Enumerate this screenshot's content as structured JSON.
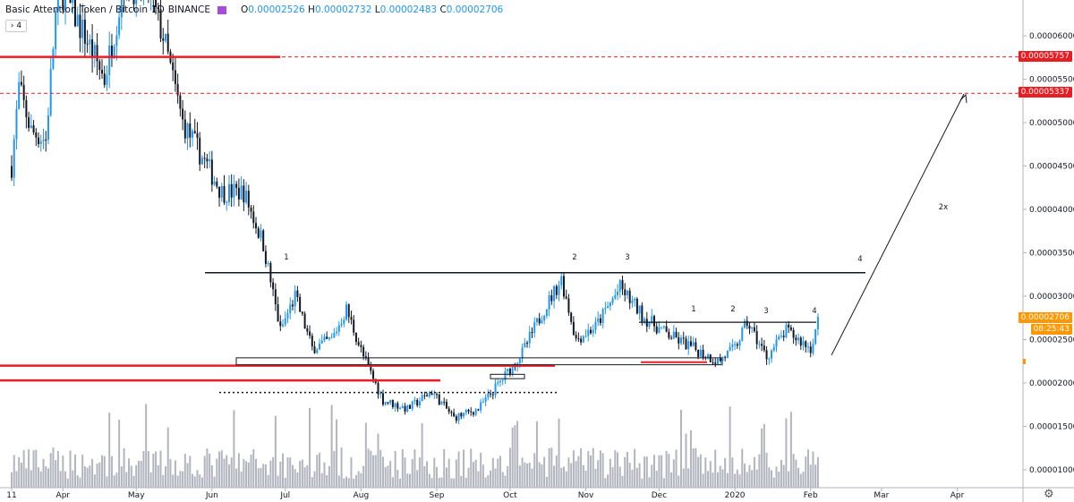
{
  "legend": {
    "symbol": "Basic Attention Token / Bitcoin",
    "interval": "1D",
    "exchange": "BINANCE",
    "o_label": "O",
    "o": "0.00002526",
    "h_label": "H",
    "h": "0.00002732",
    "l_label": "L",
    "l": "0.00002483",
    "c_label": "C",
    "c": "0.00002706",
    "collapse": "4"
  },
  "price_tags": {
    "red1": "0.00005757",
    "red2": "0.00005337",
    "last": "0.00002706",
    "countdown": "08:25:43"
  },
  "colors": {
    "up": "#2196f3",
    "down": "#131722",
    "red": "#e91e25",
    "orange": "#ff9800"
  },
  "chart_data": {
    "type": "candlestick",
    "y_axis": {
      "ticks": [
        "0.00006000",
        "0.00005500",
        "0.00005000",
        "0.00004500",
        "0.00004000",
        "0.00003500",
        "0.00003000",
        "0.00002500",
        "0.00002000",
        "0.00001500",
        "0.00001000"
      ],
      "range": [
        5.9e-06,
        6.4e-05
      ]
    },
    "x_axis": {
      "ticks": [
        "11",
        "Apr",
        "May",
        "Jun",
        "Jul",
        "Aug",
        "Sep",
        "Oct",
        "Nov",
        "Dec",
        "2020",
        "Feb",
        "Mar",
        "Apr"
      ]
    },
    "price_path": [
      [
        "2019-03-11",
        4.5e-05
      ],
      [
        "2019-03-14",
        5.4e-05
      ],
      [
        "2019-03-19",
        4.9e-05
      ],
      [
        "2019-03-25",
        4.8e-05
      ],
      [
        "2019-03-30",
        6.6e-05
      ],
      [
        "2019-04-10",
        6e-05
      ],
      [
        "2019-04-18",
        5.5e-05
      ],
      [
        "2019-04-26",
        6.6e-05
      ],
      [
        "2019-05-06",
        6.5e-05
      ],
      [
        "2019-05-12",
        6e-05
      ],
      [
        "2019-05-20",
        5e-05
      ],
      [
        "2019-05-28",
        4.6e-05
      ],
      [
        "2019-06-05",
        4.2e-05
      ],
      [
        "2019-06-14",
        4.2e-05
      ],
      [
        "2019-06-22",
        3.6e-05
      ],
      [
        "2019-06-29",
        2.6e-05
      ],
      [
        "2019-07-05",
        3e-05
      ],
      [
        "2019-07-12",
        2.4e-05
      ],
      [
        "2019-07-20",
        2.5e-05
      ],
      [
        "2019-07-26",
        2.85e-05
      ],
      [
        "2019-08-02",
        2.3e-05
      ],
      [
        "2019-08-10",
        1.8e-05
      ],
      [
        "2019-08-20",
        1.7e-05
      ],
      [
        "2019-08-30",
        1.9e-05
      ],
      [
        "2019-09-08",
        1.6e-05
      ],
      [
        "2019-09-18",
        1.7e-05
      ],
      [
        "2019-09-28",
        2.05e-05
      ],
      [
        "2019-10-06",
        2.35e-05
      ],
      [
        "2019-10-14",
        2.8e-05
      ],
      [
        "2019-10-22",
        3.2e-05
      ],
      [
        "2019-10-28",
        2.5e-05
      ],
      [
        "2019-11-05",
        2.65e-05
      ],
      [
        "2019-11-15",
        3.1e-05
      ],
      [
        "2019-11-25",
        2.75e-05
      ],
      [
        "2019-12-05",
        2.55e-05
      ],
      [
        "2019-12-15",
        2.4e-05
      ],
      [
        "2019-12-25",
        2.25e-05
      ],
      [
        "2020-01-01",
        2.4e-05
      ],
      [
        "2020-01-06",
        2.7e-05
      ],
      [
        "2020-01-14",
        2.3e-05
      ],
      [
        "2020-01-22",
        2.6e-05
      ],
      [
        "2020-02-01",
        2.4e-05
      ],
      [
        "2020-02-04",
        2.71e-05
      ]
    ],
    "horizontal_lines": [
      {
        "label": "resistance",
        "value": 3.27e-05,
        "color": "#131722"
      },
      {
        "label": "inner resistance",
        "value": 2.7e-05,
        "color": "#131722"
      },
      {
        "label": "red dashed 1",
        "value": 5.757e-05,
        "color": "#e91e25"
      },
      {
        "label": "red dashed 2",
        "value": 5.337e-05,
        "color": "#e91e25"
      },
      {
        "label": "support red 1",
        "value": 2.2e-05,
        "color": "#e91e25"
      },
      {
        "label": "support red 2",
        "value": 2.03e-05,
        "color": "#e91e25"
      },
      {
        "label": "dotted support",
        "value": 1.89e-05,
        "color": "#131722"
      }
    ],
    "annotations": [
      "1",
      "2",
      "3",
      "4",
      "1",
      "2",
      "3",
      "4",
      "2x"
    ]
  }
}
